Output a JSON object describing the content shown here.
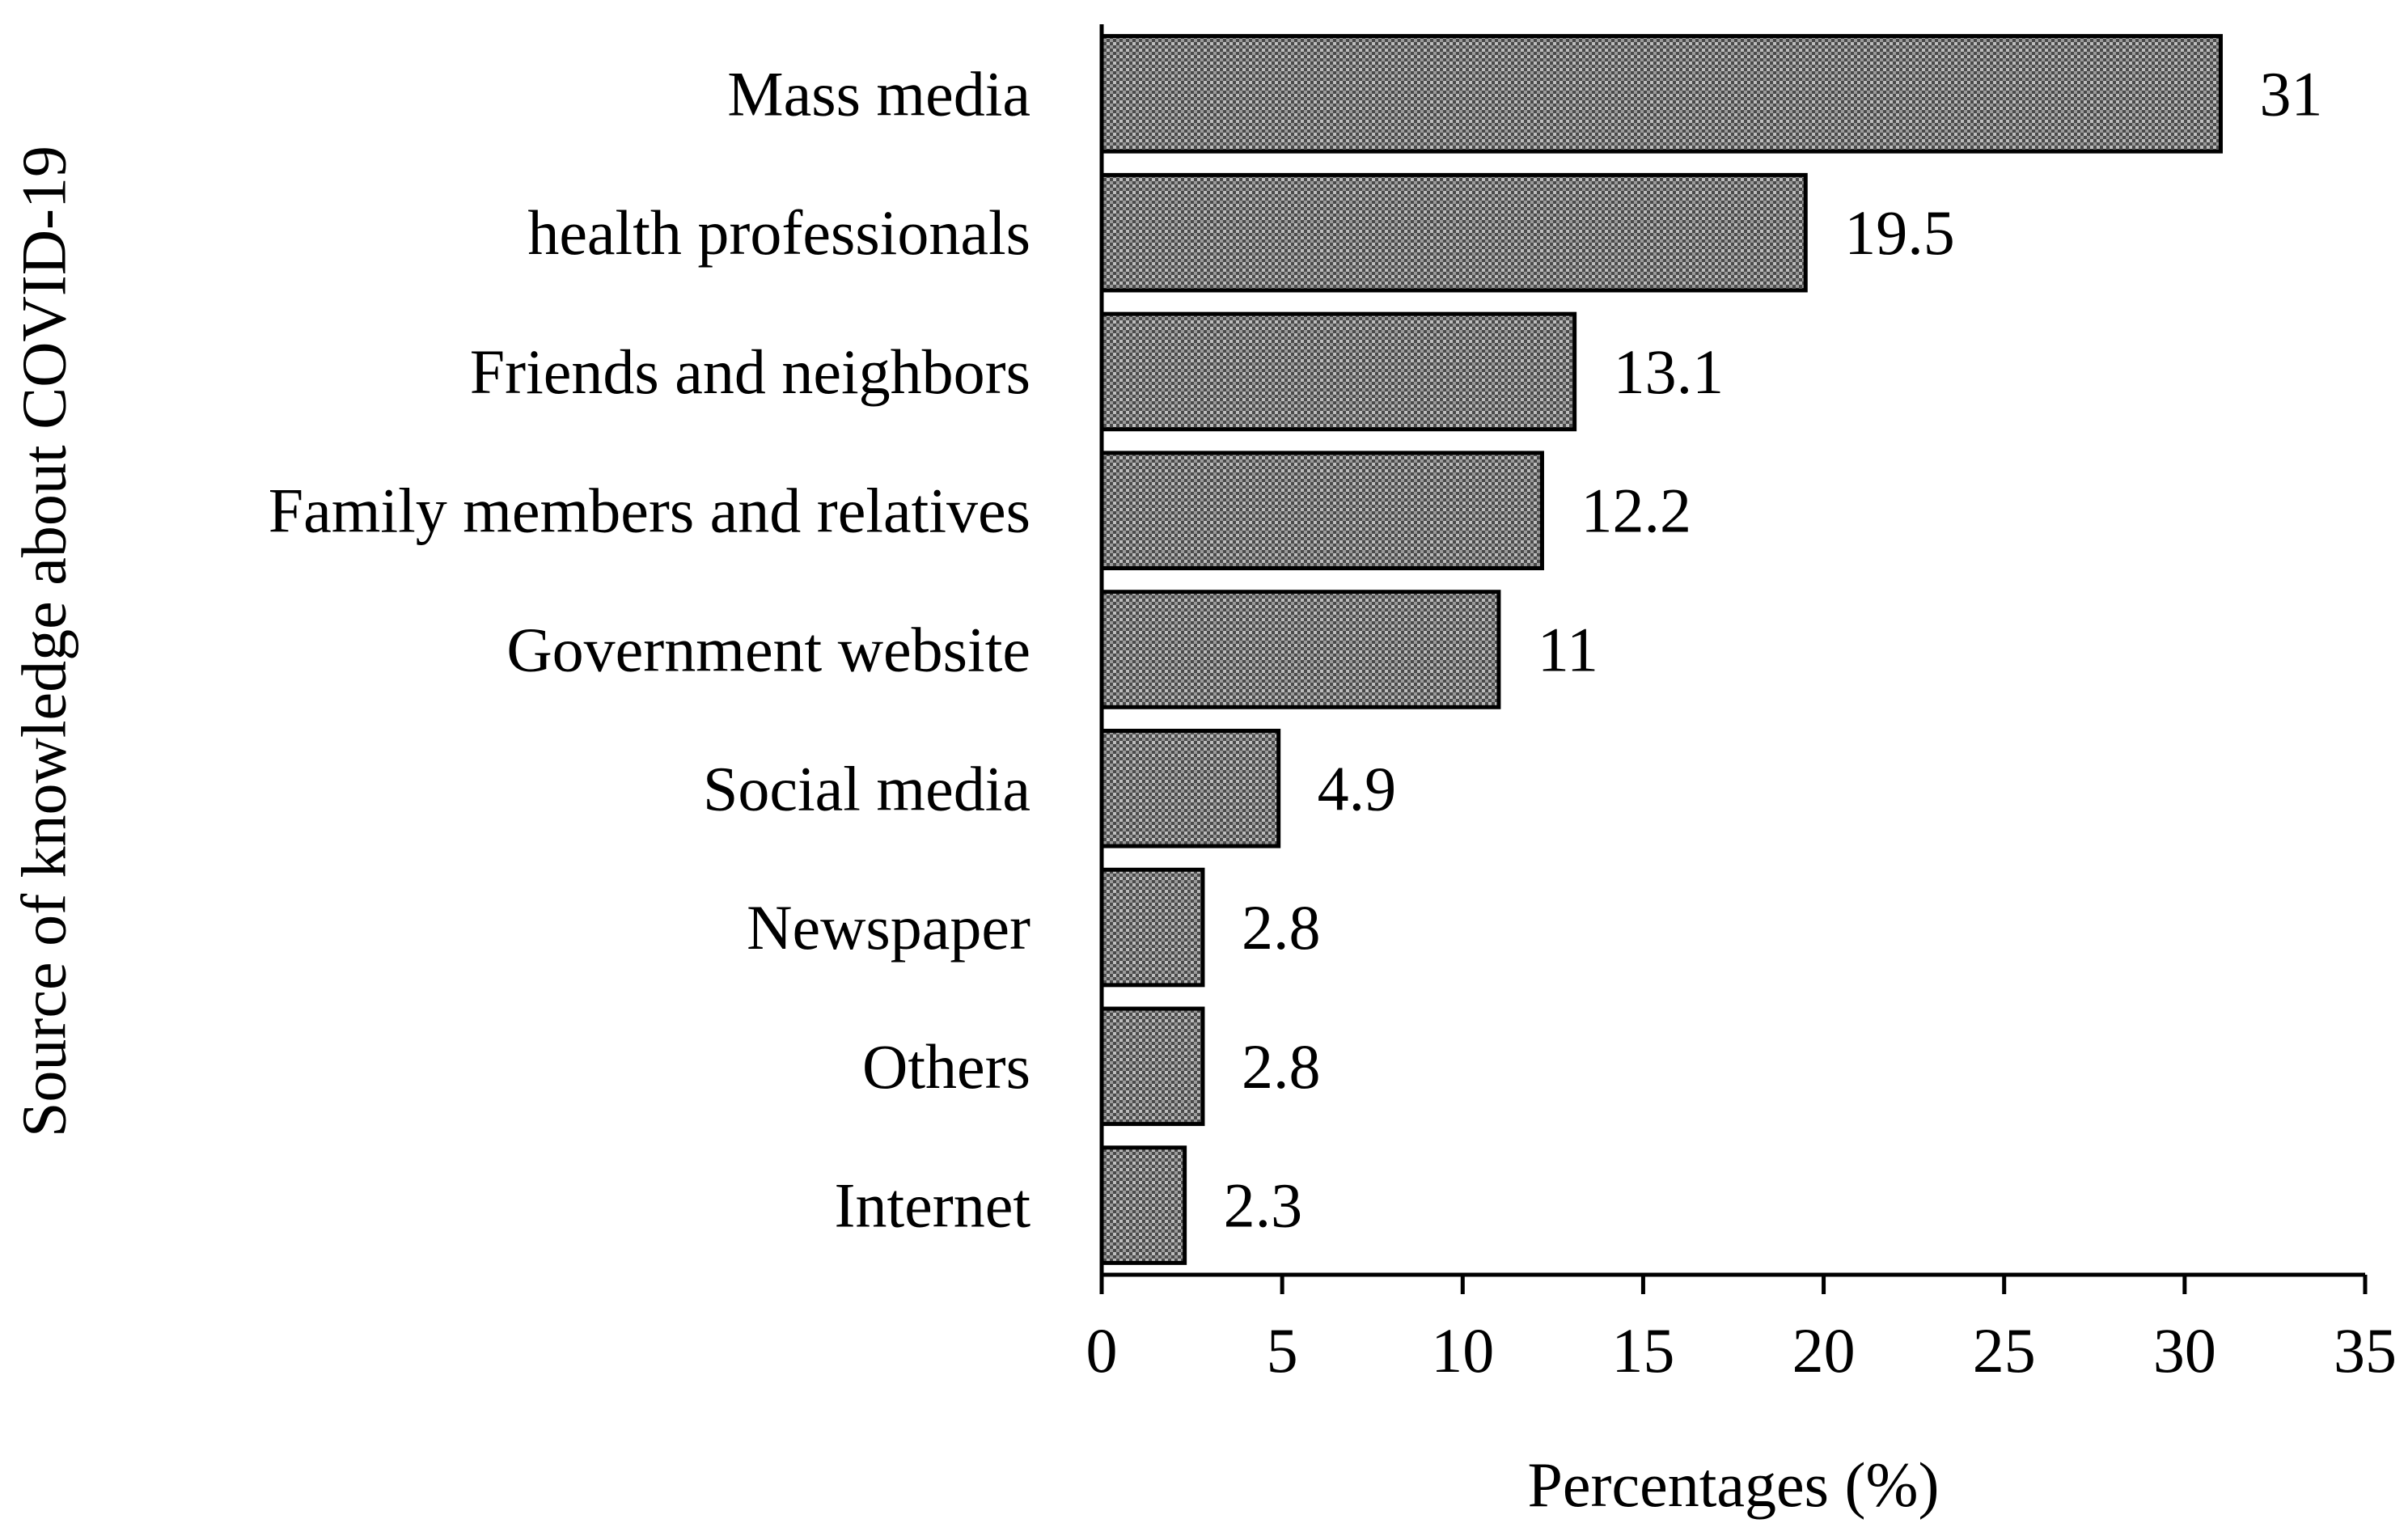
{
  "chart_data": {
    "type": "bar",
    "orientation": "horizontal",
    "title": "",
    "xlabel": "Percentages (%)",
    "ylabel": "Source of knowledge about COVID-19",
    "categories": [
      "Mass media",
      "health professionals",
      "Friends and neighbors",
      "Family members and relatives",
      "Government website",
      "Social media",
      "Newspaper",
      "Others",
      "Internet"
    ],
    "values": [
      31,
      19.5,
      13.1,
      12.2,
      11,
      4.9,
      2.8,
      2.8,
      2.3
    ],
    "value_labels": [
      "31",
      "19.5",
      "13.1",
      "12.2",
      "11",
      "4.9",
      "2.8",
      "2.8",
      "2.3"
    ],
    "xlim": [
      0,
      35
    ],
    "xticks": [
      "0",
      "5",
      "10",
      "15",
      "20",
      "25",
      "30",
      "35"
    ],
    "grid": false,
    "legend": "none",
    "bar_fill": "checkered-gray",
    "bar_outline_color": "#000000"
  }
}
